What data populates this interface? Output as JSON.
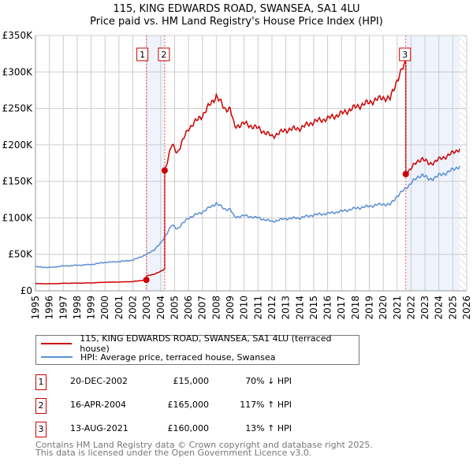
{
  "chart_data": {
    "type": "line",
    "title": "115, KING EDWARDS ROAD, SWANSEA, SA1 4LU",
    "subtitle": "Price paid vs. HM Land Registry's House Price Index (HPI)",
    "xlim": [
      1995,
      2026
    ],
    "ylim": [
      0,
      350000
    ],
    "yticks": [
      "£0",
      "£50K",
      "£100K",
      "£150K",
      "£200K",
      "£250K",
      "£300K",
      "£350K"
    ],
    "xticks": [
      "1995",
      "1996",
      "1997",
      "1998",
      "1999",
      "2000",
      "2001",
      "2002",
      "2003",
      "2004",
      "2005",
      "2006",
      "2007",
      "2008",
      "2009",
      "2010",
      "2011",
      "2012",
      "2013",
      "2014",
      "2015",
      "2016",
      "2017",
      "2018",
      "2019",
      "2020",
      "2021",
      "2022",
      "2023",
      "2024",
      "2025",
      "2026"
    ],
    "series": [
      {
        "name": "115, KING EDWARDS ROAD, SWANSEA, SA1 4LU (terraced house)",
        "color": "#cc0000"
      },
      {
        "name": "HPI: Average price, terraced house, Swansea",
        "color": "#5b8fd4",
        "x": [
          1995,
          1996,
          1997,
          1998,
          1999,
          2000,
          2001,
          2002,
          2003,
          2003.5,
          2004,
          2004.8,
          2005.2,
          2006,
          2007,
          2008,
          2008.6,
          2009,
          2009.3,
          2010,
          2011,
          2012,
          2013,
          2014,
          2015,
          2016,
          2017,
          2018,
          2019,
          2020,
          2020.5,
          2021,
          2021.6,
          2022,
          2022.8,
          2023.3,
          2024,
          2024.7,
          2025.5
        ],
        "y": [
          33000,
          32000,
          34000,
          35000,
          36000,
          39000,
          40000,
          42000,
          50000,
          56000,
          65000,
          90000,
          85000,
          100000,
          108000,
          120000,
          112000,
          112000,
          101000,
          103000,
          100000,
          95000,
          99000,
          100000,
          104000,
          106000,
          109000,
          113000,
          116000,
          119000,
          118000,
          130000,
          140000,
          148000,
          160000,
          152000,
          158000,
          163000,
          171000
        ]
      }
    ],
    "sales": [
      {
        "label": "1",
        "x": 2002.97,
        "date": "20-DEC-2002",
        "price_value": 15000,
        "price": "£15,000",
        "hpi": "70% ↓ HPI"
      },
      {
        "label": "2",
        "x": 2004.29,
        "date": "16-APR-2004",
        "price_value": 165000,
        "price": "£165,000",
        "hpi": "117% ↑ HPI"
      },
      {
        "label": "3",
        "x": 2021.62,
        "date": "13-AUG-2021",
        "price_value": 160000,
        "price": "£160,000",
        "hpi": "13% ↑ HPI"
      }
    ],
    "shaded": [
      [
        2002.97,
        2004.29
      ],
      [
        2021.62,
        2025.5
      ]
    ],
    "hatched_from": 2025.5
  },
  "footer": [
    "Contains HM Land Registry data © Crown copyright and database right 2025.",
    "This data is licensed under the Open Government Licence v3.0."
  ]
}
